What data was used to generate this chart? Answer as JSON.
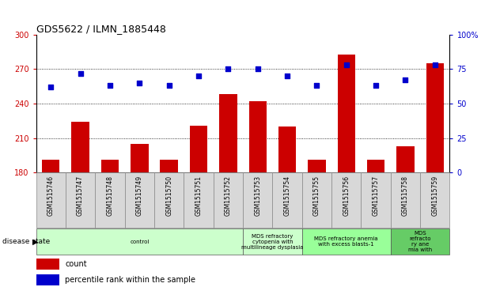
{
  "title": "GDS5622 / ILMN_1885448",
  "samples": [
    "GSM1515746",
    "GSM1515747",
    "GSM1515748",
    "GSM1515749",
    "GSM1515750",
    "GSM1515751",
    "GSM1515752",
    "GSM1515753",
    "GSM1515754",
    "GSM1515755",
    "GSM1515756",
    "GSM1515757",
    "GSM1515758",
    "GSM1515759"
  ],
  "counts": [
    191,
    224,
    191,
    205,
    191,
    221,
    248,
    242,
    220,
    191,
    283,
    191,
    203,
    275
  ],
  "percentiles": [
    62,
    72,
    63,
    65,
    63,
    70,
    75,
    75,
    70,
    63,
    78,
    63,
    67,
    78
  ],
  "ylim_left": [
    180,
    300
  ],
  "ylim_right": [
    0,
    100
  ],
  "yticks_left": [
    180,
    210,
    240,
    270,
    300
  ],
  "yticks_right": [
    0,
    25,
    50,
    75,
    100
  ],
  "bar_color": "#cc0000",
  "dot_color": "#0000cc",
  "bg_color": "#d8d8d8",
  "disease_groups": [
    {
      "label": "control",
      "start": 0,
      "end": 6,
      "color": "#ccffcc"
    },
    {
      "label": "MDS refractory\ncytopenia with\nmultilineage dysplasia",
      "start": 7,
      "end": 9,
      "color": "#ccffcc"
    },
    {
      "label": "MDS refractory anemia\nwith excess blasts-1",
      "start": 9,
      "end": 12,
      "color": "#99ff99"
    },
    {
      "label": "MDS\nrefracto\nry ane\nmia with",
      "start": 12,
      "end": 14,
      "color": "#66cc66"
    }
  ],
  "ylabel_left_color": "#cc0000",
  "ylabel_right_color": "#0000cc"
}
